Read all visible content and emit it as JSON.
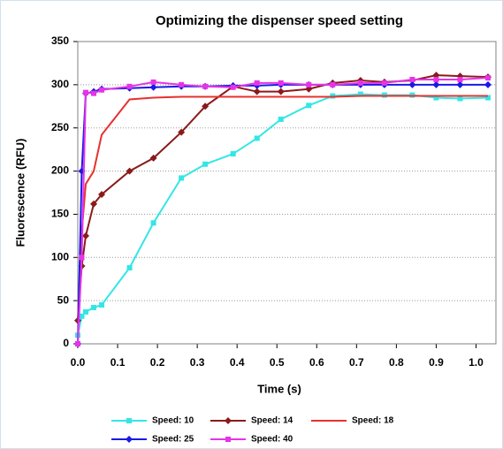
{
  "chart_data": {
    "type": "line",
    "title": "Optimizing the dispenser speed setting",
    "x_label": "Time (s)",
    "y_label": "Fluorescence (RFU)",
    "xlim": [
      0,
      1.05
    ],
    "ylim": [
      0,
      350
    ],
    "xticks": [
      {
        "value": 0,
        "label": "0.0"
      },
      0.1,
      0.2,
      0.3,
      0.4,
      0.5,
      0.6,
      0.7,
      0.8,
      0.9,
      {
        "value": 1,
        "label": "1.0"
      }
    ],
    "yticks": [
      0,
      50,
      100,
      150,
      200,
      250,
      300,
      350
    ],
    "grid": true,
    "x": [
      0,
      0.01,
      0.02,
      0.04,
      0.06,
      0.13,
      0.19,
      0.26,
      0.32,
      0.39,
      0.45,
      0.51,
      0.58,
      0.64,
      0.71,
      0.77,
      0.84,
      0.9,
      0.96,
      1.03
    ],
    "series": [
      {
        "name": "Speed: 10",
        "color": "#33e6e6",
        "marker": "square",
        "values": [
          10,
          32,
          37,
          42,
          45,
          88,
          140,
          192,
          208,
          220,
          238,
          260,
          276,
          287,
          289,
          288,
          288,
          285,
          284,
          285
        ]
      },
      {
        "name": "Speed: 14",
        "color": "#8b1a1a",
        "marker": "diamond",
        "values": [
          27,
          90,
          125,
          162,
          173,
          200,
          215,
          245,
          275,
          298,
          292,
          292,
          295,
          302,
          305,
          303,
          305,
          311,
          310,
          309
        ]
      },
      {
        "name": "Speed: 18",
        "color": "#e83030",
        "marker": "none",
        "values": [
          25,
          130,
          185,
          200,
          242,
          283,
          285,
          286,
          286,
          286,
          286,
          286,
          286,
          286,
          287,
          287,
          287,
          287,
          287,
          287
        ]
      },
      {
        "name": "Speed: 25",
        "color": "#1a1ae6",
        "marker": "diamond",
        "values": [
          0,
          200,
          290,
          292,
          295,
          296,
          297,
          298,
          298,
          299,
          299,
          300,
          300,
          300,
          300,
          300,
          300,
          300,
          300,
          300
        ]
      },
      {
        "name": "Speed: 40",
        "color": "#e633e6",
        "marker": "square",
        "values": [
          0,
          100,
          291,
          290,
          294,
          298,
          303,
          300,
          298,
          297,
          302,
          302,
          300,
          300,
          302,
          302,
          306,
          306,
          306,
          308
        ]
      }
    ]
  }
}
